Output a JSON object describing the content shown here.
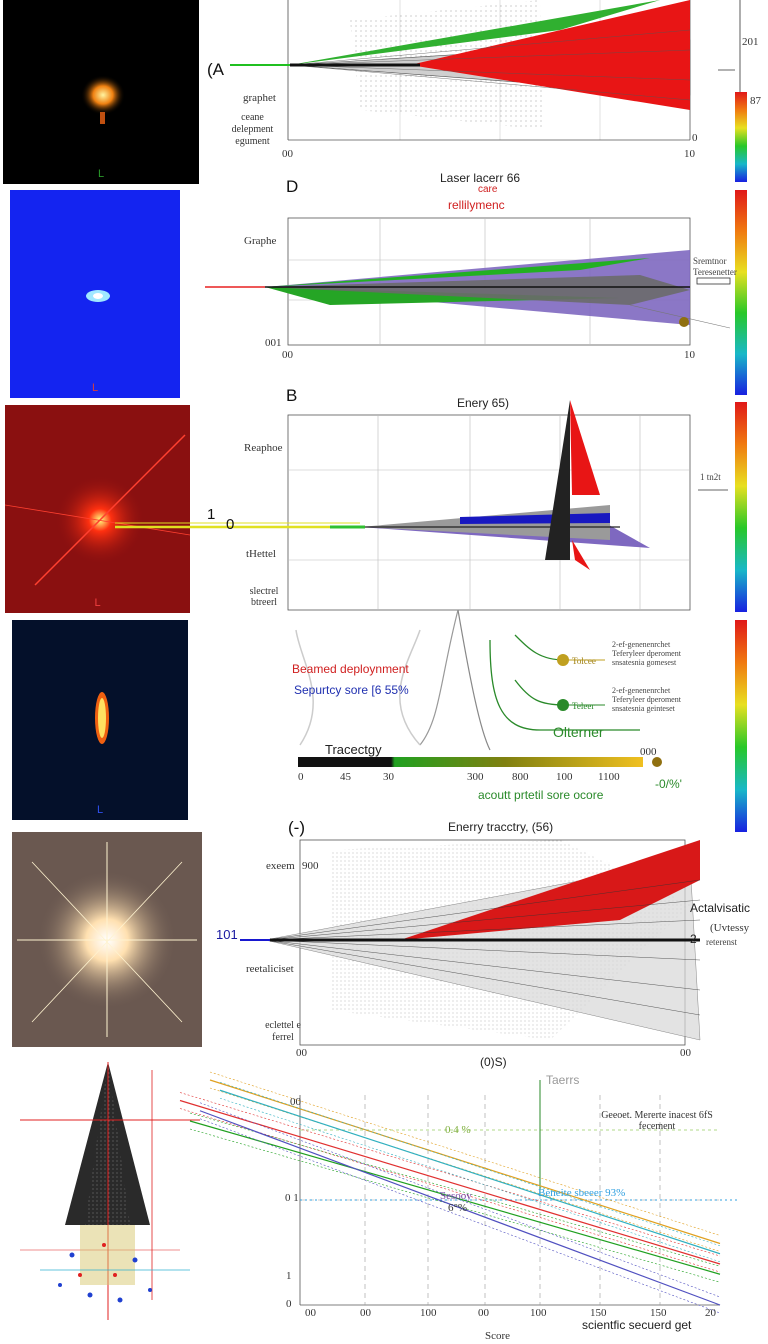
{
  "thumbnails": [
    {
      "id": "thumb-1",
      "caption": "L"
    },
    {
      "id": "thumb-2",
      "caption": "L"
    },
    {
      "id": "thumb-3",
      "caption": "L"
    },
    {
      "id": "thumb-4",
      "caption": "L"
    },
    {
      "id": "thumb-5",
      "caption": ""
    }
  ],
  "panel1": {
    "panel_label": "(A",
    "ylabels": [
      "graphet",
      "ceane delepment egument"
    ],
    "xtick_left": "00",
    "xtick_right": "10",
    "ytick_bottom": "0",
    "colorbar_top": "201",
    "colorbar_mid": "87"
  },
  "panel2": {
    "panel_label": "D",
    "title": "Laser lacerr 66",
    "subtitle_1": "care",
    "subtitle_2": "rellilymenc",
    "ylabel": "Graphe",
    "xtick_left": "00",
    "xtick_right": "10",
    "ytick_bottom": "001",
    "side_note": "Sremtnor Teresenetter"
  },
  "panel3": {
    "panel_label": "B",
    "title": "Enery 65)",
    "ylabels": [
      "Reaphoe",
      "tHettel",
      "slectrel btreerl"
    ],
    "callout_1": "1",
    "callout_0": "0",
    "side_note": "1 tn2t"
  },
  "flow": {
    "beamed": "Beamed deploynment",
    "security": "Sepurtcy sore [6 55%",
    "alternate": "Olterner",
    "node_a": "Tolcee",
    "node_b": "Teleer",
    "note_a": "2-ef-genenenrchet Teferyleer dperoment snsatesnia gomesest",
    "note_b": "2-ef-genenenrchet Teferyleer dperoment snsatesnia geinteset",
    "trajectory_label": "Tracectgy",
    "bar_ticks": [
      "0",
      "45",
      "30",
      "300",
      "800",
      "100",
      "1100"
    ],
    "bar_tick_right": "000",
    "bar_caption": "acoutt prtetil sore ocore",
    "pct_note": "-0/%'"
  },
  "panel4": {
    "panel_label": "(-)",
    "title": "Enerry tracctry, (56)",
    "left_value": "101",
    "ylabels": [
      "exeem",
      "reetaliciset",
      "eclettel e ferrel"
    ],
    "ytick_top": "900",
    "xtick_left": "00",
    "xtick_right": "00",
    "xlabel": "(0)S)",
    "right_title": "Actalvisatic",
    "right_note": "(Uvtessy",
    "right_num": "2",
    "right_sub": "reterenst"
  },
  "panel5": {
    "legend_title": "Taerrs",
    "top_note": "Geeoet. Mererte inacest 6fS fecement",
    "pct_annot": "0.4 %",
    "mid_annot": "Beneite sbeeer 93%",
    "mid_annot_2": "Sesooy",
    "mid_annot_3": "6°%",
    "yticks": [
      "00",
      "0 1",
      "1",
      "0"
    ],
    "xticks": [
      "00",
      "00",
      "100",
      "00",
      "100",
      "150",
      "150",
      "20"
    ],
    "xlabel": "Score",
    "xlabel_right": "scientfic secuerd get"
  },
  "chart_data": [
    {
      "type": "area",
      "title": "",
      "xlabel": "",
      "ylabel": "graphet",
      "xlim": [
        0,
        10
      ],
      "series": [
        {
          "color": "#e81010",
          "values": [
            0,
            1.4,
            2.8
          ]
        },
        {
          "color": "#20b020",
          "values": [
            0,
            0.9,
            1.6
          ]
        },
        {
          "color": "#909090",
          "values": [
            0,
            0.6,
            1.1
          ]
        }
      ]
    },
    {
      "type": "area",
      "title": "Laser lacerr 66",
      "xlim": [
        0,
        10
      ],
      "series": [
        {
          "color": "#20b020",
          "values": [
            0,
            0.5,
            1.0
          ]
        },
        {
          "color": "#7060b0",
          "values": [
            0,
            0.6,
            1.3
          ]
        },
        {
          "color": "#707070",
          "values": [
            0,
            0.3,
            0.6
          ]
        }
      ]
    },
    {
      "type": "area",
      "title": "Enery 65)",
      "series": [
        {
          "color": "#e81010",
          "values": [
            0,
            0.6,
            2.4
          ]
        },
        {
          "color": "#1818c0",
          "values": [
            0,
            0.2,
            0.3
          ]
        },
        {
          "color": "#7060b0",
          "values": [
            0,
            0.4,
            0.9
          ]
        }
      ]
    },
    {
      "type": "area",
      "title": "Enerry tracctry, (56)",
      "series": [
        {
          "color": "#d81010",
          "values": [
            0,
            0.8,
            2.0
          ]
        },
        {
          "color": "#404040",
          "values": [
            0,
            0.5,
            1.2
          ]
        }
      ]
    },
    {
      "type": "line",
      "title": "",
      "xlabel": "Score",
      "series": [
        {
          "color": "#e03030",
          "values": [
            0.9,
            0.2
          ]
        },
        {
          "color": "#20a020",
          "values": [
            0.8,
            0.15
          ]
        },
        {
          "color": "#5050c0",
          "values": [
            0.85,
            0.0
          ]
        },
        {
          "color": "#e0a020",
          "values": [
            1.0,
            0.3
          ]
        },
        {
          "color": "#30b0c0",
          "values": [
            0.95,
            0.25
          ]
        }
      ]
    }
  ]
}
